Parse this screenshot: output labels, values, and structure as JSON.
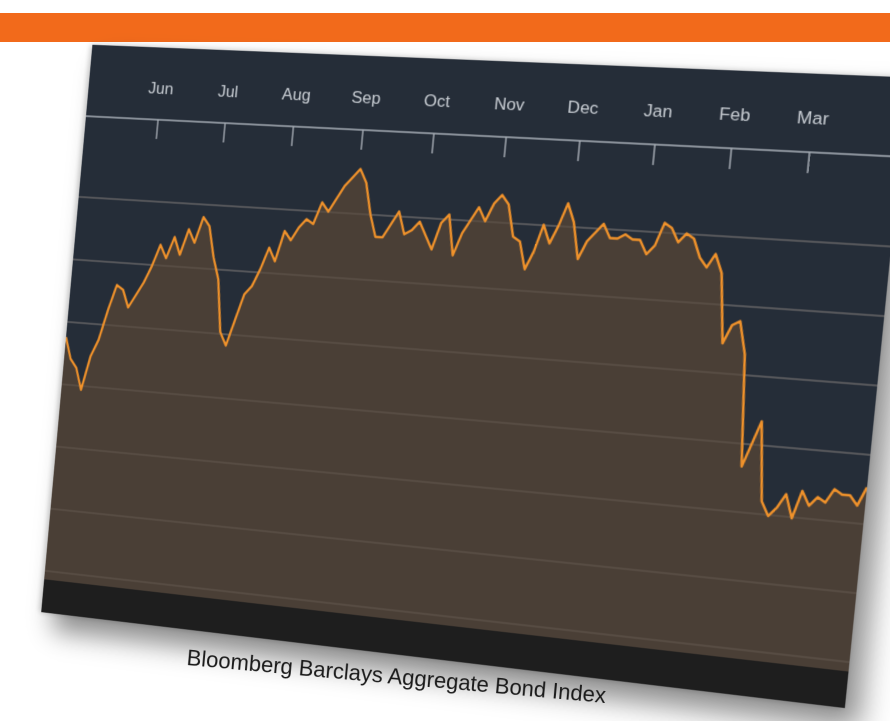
{
  "chart_data": {
    "type": "area",
    "title": "Bloomberg Barclays Aggregate Bond Index",
    "xlabel": "",
    "ylabel": "",
    "x_tick_labels": [
      "Jun",
      "Jul",
      "Aug",
      "Sep",
      "Oct",
      "Nov",
      "Dec",
      "Jan",
      "Feb",
      "Mar"
    ],
    "y_tick_labels": [],
    "grid": true,
    "ylim": [
      0,
      100
    ],
    "series": [
      {
        "color": "#f0922b",
        "fill": "#4a3f36",
        "values": [
          56,
          51,
          49,
          44,
          52,
          56,
          63,
          69,
          68,
          64,
          67,
          70,
          74,
          79,
          76,
          81,
          77,
          83,
          80,
          86,
          84,
          77,
          72,
          60,
          57,
          63,
          69,
          71,
          75,
          80,
          77,
          84,
          82,
          85,
          87,
          86,
          91,
          89,
          92,
          95,
          97,
          99,
          96,
          89,
          84,
          84,
          87,
          90,
          85,
          86,
          88,
          85,
          82,
          88,
          90,
          81,
          86,
          89,
          92,
          89,
          93,
          95,
          93,
          86,
          85,
          79,
          83,
          89,
          85,
          89,
          94,
          90,
          82,
          86,
          88,
          90,
          87,
          87,
          88,
          87,
          87,
          84,
          86,
          91,
          90,
          87,
          89,
          88,
          84,
          82,
          85,
          81,
          66,
          70,
          71,
          64,
          40,
          45,
          50,
          33,
          30,
          32,
          35,
          30,
          36,
          33,
          35,
          34,
          37,
          36,
          36,
          34,
          38
        ]
      }
    ]
  }
}
